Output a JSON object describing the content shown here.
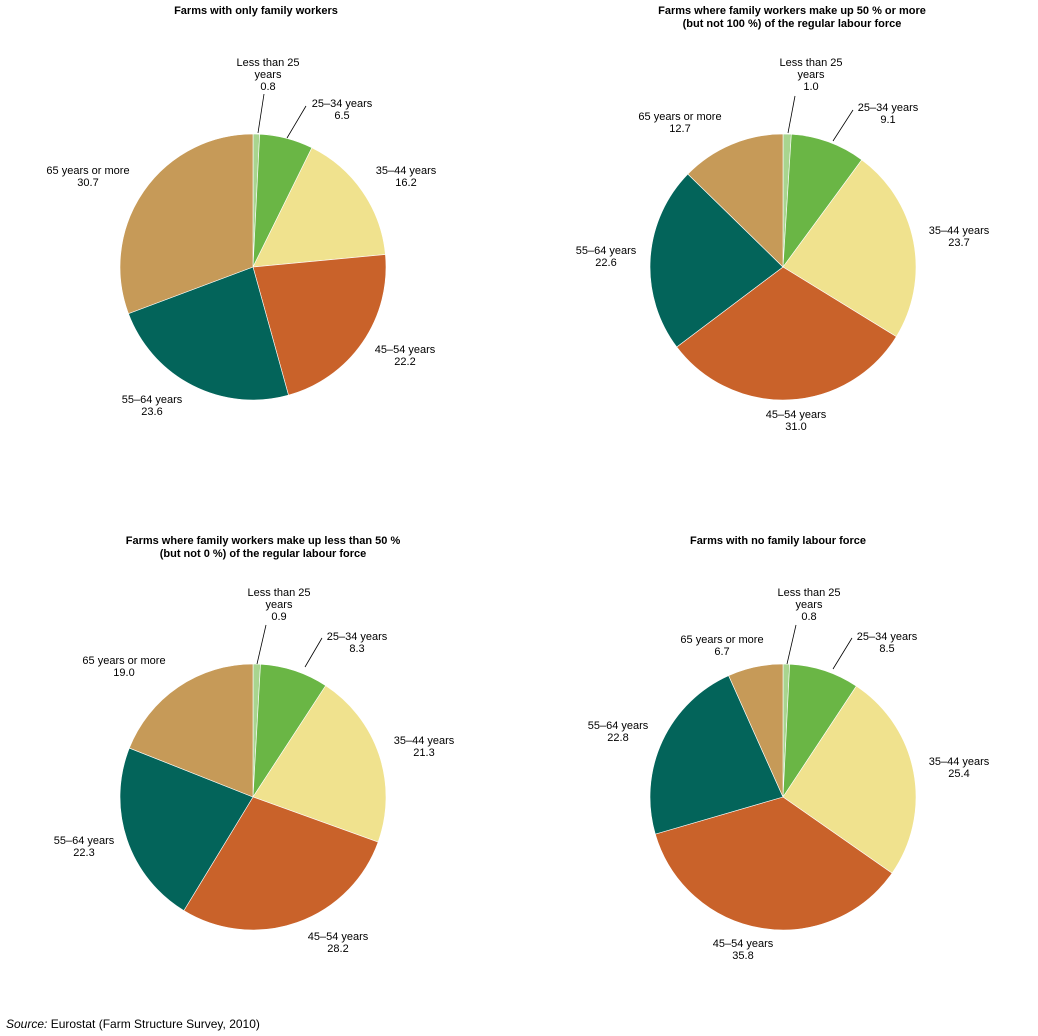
{
  "colors": {
    "Less than 25 years": "#a8d58f",
    "25–34 years": "#6ab645",
    "35–44 years": "#f0e28e",
    "45–54 years": "#c9622a",
    "55–64 years": "#03645a",
    "65 years or more": "#c69a58"
  },
  "source": {
    "label": "Source:",
    "text": "Eurostat (Farm Structure Survey, 2010)"
  },
  "chart_data": [
    {
      "type": "pie",
      "title": "Farms with only family workers",
      "categories": [
        "Less than 25 years",
        "25–34 years",
        "35–44 years",
        "45–54 years",
        "55–64 years",
        "65 years or more"
      ],
      "label_lines": [
        [
          "Less than 25",
          "years"
        ],
        [
          "25–34 years"
        ],
        [
          "35–44 years"
        ],
        [
          "45–54 years"
        ],
        [
          "55–64 years"
        ],
        [
          "65 years or more"
        ]
      ],
      "value_labels": [
        "0.8",
        "6.5",
        "16.2",
        "22.2",
        "23.6",
        "30.7"
      ],
      "values": [
        0.8,
        6.5,
        16.2,
        22.2,
        23.6,
        30.7
      ]
    },
    {
      "type": "pie",
      "title": [
        "Farms where family workers make up 50 % or more",
        "(but not 100 %) of the regular labour force"
      ],
      "categories": [
        "Less than 25 years",
        "25–34 years",
        "35–44 years",
        "45–54 years",
        "55–64 years",
        "65 years or more"
      ],
      "label_lines": [
        [
          "Less than 25",
          "years"
        ],
        [
          "25–34 years"
        ],
        [
          "35–44 years"
        ],
        [
          "45–54 years"
        ],
        [
          "55–64 years"
        ],
        [
          "65 years or more"
        ]
      ],
      "value_labels": [
        "1.0",
        "9.1",
        "23.7",
        "31.0",
        "22.6",
        "12.7"
      ],
      "values": [
        1.0,
        9.1,
        23.7,
        31.0,
        22.6,
        12.7
      ]
    },
    {
      "type": "pie",
      "title": [
        "Farms where family workers make up less than 50 %",
        "(but not 0 %) of the regular labour force"
      ],
      "categories": [
        "Less than 25 years",
        "25–34 years",
        "35–44 years",
        "45–54 years",
        "55–64 years",
        "65 years or more"
      ],
      "label_lines": [
        [
          "Less than 25",
          "years"
        ],
        [
          "25–34 years"
        ],
        [
          "35–44 years"
        ],
        [
          "45–54 years"
        ],
        [
          "55–64 years"
        ],
        [
          "65 years or more"
        ]
      ],
      "value_labels": [
        "0.9",
        "8.3",
        "21.3",
        "28.2",
        "22.3",
        "19.0"
      ],
      "values": [
        0.9,
        8.3,
        21.3,
        28.2,
        22.3,
        19.0
      ]
    },
    {
      "type": "pie",
      "title": "Farms with no family labour force",
      "categories": [
        "Less than 25 years",
        "25–34 years",
        "35–44 years",
        "45–54 years",
        "55–64 years",
        "65 years or more"
      ],
      "label_lines": [
        [
          "Less than 25",
          "years"
        ],
        [
          "25–34 years"
        ],
        [
          "35–44 years"
        ],
        [
          "45–54 years"
        ],
        [
          "55–64 years"
        ],
        [
          "65 years or more"
        ]
      ],
      "value_labels": [
        "0.8",
        "8.5",
        "25.4",
        "35.8",
        "22.8",
        "6.7"
      ],
      "values": [
        0.8,
        8.5,
        25.4,
        35.8,
        22.8,
        6.7
      ]
    }
  ]
}
